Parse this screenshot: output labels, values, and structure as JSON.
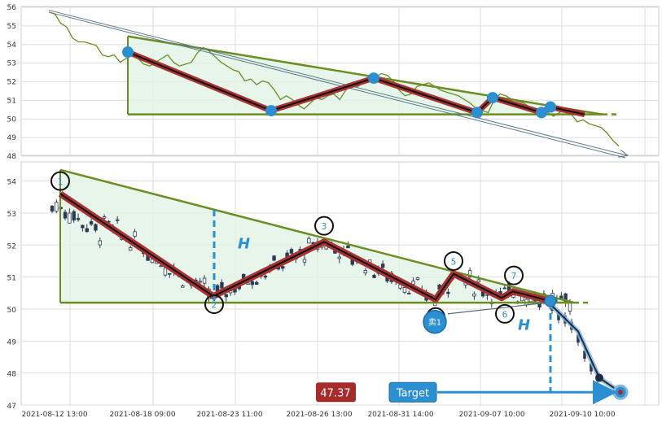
{
  "chart_data": {
    "type": "candlestick",
    "pattern": "descending triangle",
    "colors": {
      "trend_green": "#6b8e23",
      "zigzag_red": "#a83232",
      "marker_blue": "#2b8fd1",
      "fill_green": "#e3f3e6",
      "candle_dark": "#2e3b55",
      "price_label_bg": "#a62c2c",
      "target_label_bg": "#2b8fd1"
    },
    "x_labels": [
      "2021-08-12 13:00",
      "2021-08-18 09:00",
      "2021-08-23 11:00",
      "2021-08-26 13:00",
      "2021-08-31 14:00",
      "2021-09-07 10:00",
      "2021-09-10 10:00"
    ],
    "top_panel": {
      "y_range": [
        48,
        56
      ],
      "y_ticks": [
        48,
        49,
        50,
        51,
        52,
        53,
        54,
        55,
        56
      ],
      "grid": true,
      "series": "close",
      "close": [
        55.7,
        55.6,
        55.1,
        54.9,
        54.3,
        54.1,
        54.1,
        54.0,
        53.9,
        53.4,
        53.3,
        53.4,
        53.0,
        53.2,
        53.4,
        53.2,
        52.9,
        52.8,
        53.0,
        53.2,
        53.4,
        53.0,
        52.8,
        52.9,
        53.0,
        53.5,
        53.8,
        53.6,
        53.3,
        53.0,
        52.8,
        52.6,
        52.5,
        52.0,
        52.1,
        51.8,
        52.0,
        51.9,
        51.5,
        51.0,
        51.2,
        51.0,
        50.7,
        50.5,
        50.8,
        51.1,
        51.0,
        51.2,
        51.3,
        51.0,
        51.5,
        51.8,
        51.7,
        51.9,
        52.0,
        52.2,
        52.4,
        52.3,
        52.0,
        51.5,
        51.2,
        51.3,
        51.7,
        51.8,
        51.9,
        51.7,
        51.5,
        51.4,
        51.3,
        51.2,
        51.0,
        50.8,
        50.5,
        50.4,
        50.3,
        51.0,
        51.3,
        51.2,
        51.0,
        50.9,
        50.8,
        50.6,
        50.5,
        50.4,
        50.3,
        50.1,
        50.3,
        50.5,
        50.2,
        49.8,
        49.9,
        49.7,
        49.6,
        49.5,
        49.2,
        48.8,
        48.5
      ],
      "zigzag": [
        53.55,
        50.4,
        52.15,
        50.3,
        51.1,
        50.3,
        50.6,
        50.2
      ],
      "resistance": [
        54.4,
        50.2
      ],
      "support": 50.2,
      "diagonal": [
        55.8,
        48.0
      ]
    },
    "bottom_panel": {
      "y_range": [
        47,
        54.6
      ],
      "y_ticks": [
        47,
        48,
        49,
        50,
        51,
        52,
        53,
        54
      ],
      "grid": true,
      "pattern_points": [
        {
          "label": "1",
          "value": 53.7
        },
        {
          "label": "2",
          "value": 50.15
        },
        {
          "label": "3",
          "value": 52.6
        },
        {
          "label": "4",
          "value": 49.8
        },
        {
          "label": "5",
          "value": 51.5
        },
        {
          "label": "6",
          "value": 49.9
        },
        {
          "label": "7",
          "value": 51.0
        }
      ],
      "zigzag": [
        53.6,
        50.4,
        52.1,
        50.3,
        51.1,
        50.35,
        50.55,
        50.25
      ],
      "resistance": [
        54.35,
        50.2
      ],
      "support": 50.2,
      "height_label": "H",
      "sell_marker": "卖1",
      "breakdown_path": [
        50.15,
        49.3,
        47.85,
        47.4
      ],
      "price_label": "47.37",
      "target_label": "Target",
      "target_value": 47.4
    }
  }
}
